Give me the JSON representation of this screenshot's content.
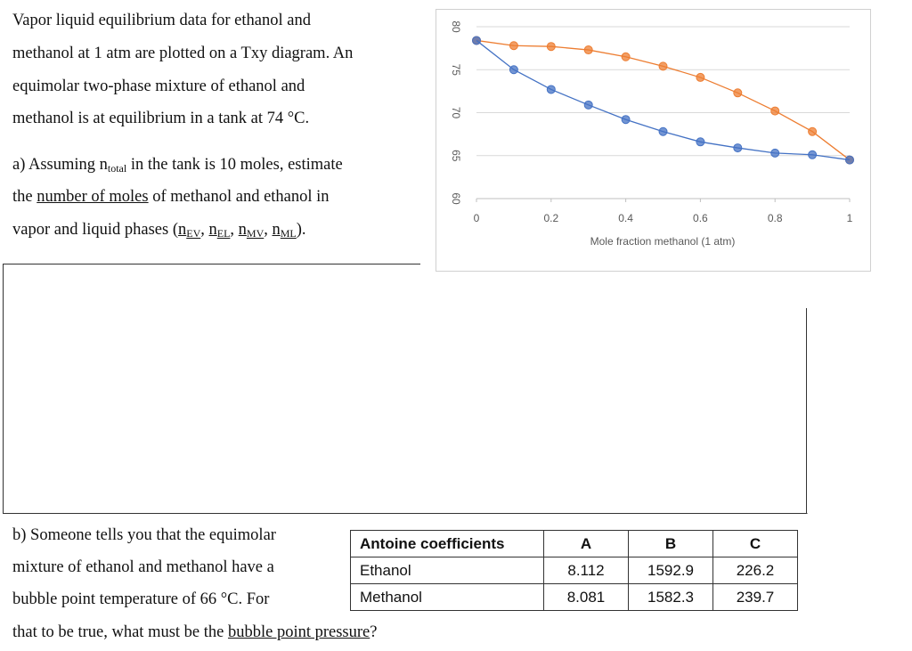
{
  "problem": {
    "intro": [
      "Vapor liquid equilibrium data for ethanol and",
      "methanol at 1 atm are plotted on a Txy diagram. An",
      "equimolar two-phase mixture of ethanol and",
      "methanol is at equilibrium in a tank at 74 °C."
    ],
    "part_a": {
      "line0": [
        "a) Assuming ",
        "n",
        "total",
        " in the tank is 10 moles, estimate"
      ],
      "line1": [
        "the ",
        "number of moles",
        " of methanol and ethanol in"
      ],
      "line2": [
        "vapor and liquid phases (",
        "n",
        "EV",
        ", ",
        "n",
        "EL",
        ", ",
        "n",
        "MV",
        ", ",
        "n",
        "ML",
        ")."
      ]
    },
    "part_b": {
      "lines": [
        "b) Someone tells you that the equimolar",
        "mixture of ethanol and methanol have a",
        "bubble point temperature of 66 °C. For"
      ],
      "last": [
        "that to be true, what must be the ",
        "bubble point pressure",
        "?"
      ]
    }
  },
  "table": {
    "header": [
      "Antoine coefficients",
      "A",
      "B",
      "C"
    ],
    "rows": [
      [
        "Ethanol",
        "8.112",
        "1592.9",
        "226.2"
      ],
      [
        "Methanol",
        "8.081",
        "1582.3",
        "239.7"
      ]
    ]
  },
  "chart_data": {
    "type": "line",
    "x_label": "Mole fraction methanol (1 atm)",
    "x": [
      0,
      0.1,
      0.2,
      0.3,
      0.4,
      0.5,
      0.6,
      0.7,
      0.8,
      0.9,
      1
    ],
    "series": [
      {
        "color": "#ed7d31",
        "values": [
          78.4,
          77.8,
          77.7,
          77.3,
          76.5,
          75.4,
          74.1,
          72.3,
          70.2,
          67.8,
          64.5
        ]
      },
      {
        "color": "#4472c4",
        "values": [
          78.4,
          75.0,
          72.7,
          70.9,
          69.2,
          67.8,
          66.6,
          65.9,
          65.3,
          65.1,
          64.5
        ]
      }
    ],
    "xlim": [
      0,
      1
    ],
    "xticks": [
      0,
      0.2,
      0.4,
      0.6,
      0.8,
      1
    ],
    "ylim": [
      60,
      80
    ],
    "yticks": [
      60,
      65,
      70,
      75,
      80
    ],
    "grid": true
  }
}
